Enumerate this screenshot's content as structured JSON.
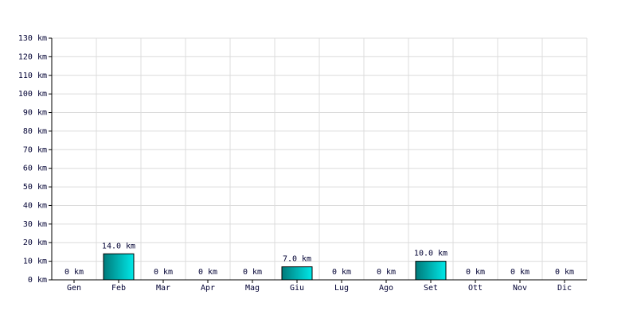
{
  "chart_data": {
    "type": "bar",
    "categories": [
      "Gen",
      "Feb",
      "Mar",
      "Apr",
      "Mag",
      "Giu",
      "Lug",
      "Ago",
      "Set",
      "Ott",
      "Nov",
      "Dic"
    ],
    "values": [
      0,
      14,
      0,
      0,
      0,
      7,
      0,
      0,
      10,
      0,
      0,
      0
    ],
    "value_labels": [
      "0 km",
      "14.0 km",
      "0 km",
      "0 km",
      "0 km",
      "7.0 km",
      "0 km",
      "0 km",
      "10.0 km",
      "0 km",
      "0 km",
      "0 km"
    ],
    "color": "#00e8e8",
    "ylim": [
      0,
      130
    ],
    "yticks": [
      {
        "value": 0,
        "label": "0 km"
      },
      {
        "value": 10,
        "label": "10 km"
      },
      {
        "value": 20,
        "label": "20 km"
      },
      {
        "value": 30,
        "label": "30 km"
      },
      {
        "value": 40,
        "label": "40 km"
      },
      {
        "value": 50,
        "label": "50 km"
      },
      {
        "value": 60,
        "label": "60 km"
      },
      {
        "value": 70,
        "label": "70 km"
      },
      {
        "value": 80,
        "label": "80 km"
      },
      {
        "value": 90,
        "label": "90 km"
      },
      {
        "value": 100,
        "label": "100 km"
      },
      {
        "value": 110,
        "label": "110 km"
      },
      {
        "value": 120,
        "label": "120 km"
      },
      {
        "value": 130,
        "label": "130 km"
      }
    ],
    "grid": true
  }
}
